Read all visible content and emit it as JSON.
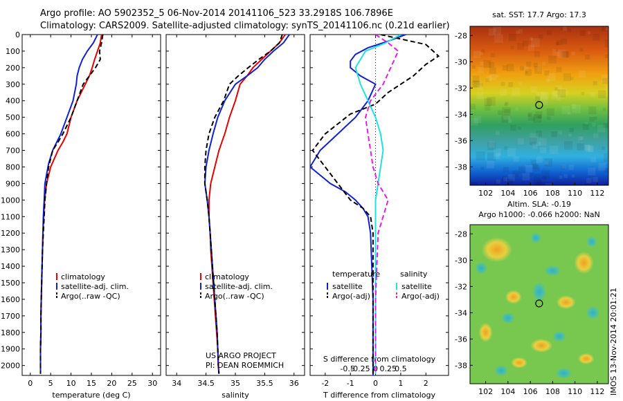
{
  "header": {
    "title_line1": "Argo profile: AO 5902352_5 06-Nov-2014 20141106_523 33.2918S 106.7896E",
    "title_line2": "Climatology: CARS2009. Satellite-adjusted climatology: synTS_20141106.nc (0.21d earlier)"
  },
  "colors": {
    "climatology": "#e00000",
    "satellite": "#1020d0",
    "argo": "#000000",
    "sal_satellite": "#20e0e0",
    "sal_argo": "#e020e0"
  },
  "chart_data": [
    {
      "type": "line",
      "xlabel": "temperature (deg C)",
      "xticks": [
        0,
        5,
        10,
        15,
        20,
        25,
        30
      ],
      "xlim": [
        -2,
        32
      ],
      "yticks": [
        0,
        100,
        200,
        300,
        400,
        500,
        600,
        700,
        800,
        900,
        1000,
        1100,
        1200,
        1300,
        1400,
        1500,
        1600,
        1700,
        1800,
        1900,
        2000
      ],
      "ylim": [
        2060,
        0
      ],
      "legend": [
        "climatology",
        "satellite-adj. clim.",
        "Argo(..raw -QC)"
      ],
      "series": [
        {
          "name": "climatology",
          "style": "solid",
          "color": "#e00000",
          "x": [
            17.5,
            17.2,
            16.5,
            15.8,
            15.2,
            14.5,
            13.5,
            11.5,
            10.0,
            9.0,
            8.0,
            6.8,
            5.0,
            4.0,
            3.5,
            3.3,
            3.1,
            3.0,
            2.9,
            2.8,
            2.7,
            2.6,
            2.6,
            2.5,
            2.5,
            2.5
          ],
          "y": [
            0,
            50,
            100,
            150,
            200,
            250,
            300,
            400,
            500,
            600,
            650,
            700,
            800,
            900,
            1000,
            1100,
            1200,
            1300,
            1400,
            1500,
            1600,
            1700,
            1800,
            1900,
            2000,
            2050
          ]
        },
        {
          "name": "satellite-adj. clim.",
          "style": "solid",
          "color": "#1020d0",
          "x": [
            16.5,
            15.5,
            14.0,
            12.8,
            12.0,
            11.5,
            11.3,
            10.5,
            9.0,
            7.5,
            6.5,
            5.5,
            4.5,
            3.6,
            3.4,
            3.2,
            3.1,
            3.0,
            2.9,
            2.8,
            2.7,
            2.6,
            2.6,
            2.5,
            2.5,
            2.5
          ],
          "y": [
            0,
            50,
            100,
            150,
            200,
            250,
            300,
            400,
            500,
            600,
            650,
            700,
            780,
            900,
            1000,
            1100,
            1200,
            1300,
            1400,
            1500,
            1600,
            1700,
            1800,
            1900,
            2000,
            2050
          ]
        },
        {
          "name": "Argo(..raw -QC)",
          "style": "dashed",
          "color": "#000000",
          "x": [
            17.8,
            17.5,
            17.0,
            17.2,
            16.0,
            14.5,
            13.0,
            11.5,
            10.0,
            8.0,
            6.8,
            5.5,
            4.5,
            4.0,
            3.6,
            3.4,
            3.2,
            3.0,
            2.9,
            2.8,
            2.7,
            2.6,
            2.6,
            2.5,
            2.5,
            2.5
          ],
          "y": [
            0,
            50,
            100,
            150,
            200,
            250,
            300,
            400,
            500,
            600,
            650,
            700,
            800,
            900,
            1000,
            1100,
            1200,
            1300,
            1400,
            1500,
            1600,
            1700,
            1800,
            1900,
            2000,
            2050
          ]
        }
      ]
    },
    {
      "type": "line",
      "xlabel": "salinity",
      "xticks": [
        34,
        34.5,
        35,
        35.5,
        36
      ],
      "xlim": [
        33.82,
        36.18
      ],
      "ylim": [
        2060,
        0
      ],
      "legend": [
        "climatology",
        "satellite-adj. clim.",
        "Argo(..raw -QC)"
      ],
      "annotation": [
        "US ARGO PROJECT",
        "PI: DEAN ROEMMICH"
      ],
      "series": [
        {
          "name": "climatology",
          "style": "solid",
          "color": "#e00000",
          "x": [
            35.85,
            35.75,
            35.6,
            35.45,
            35.3,
            35.2,
            35.08,
            35.0,
            34.9,
            34.82,
            34.72,
            34.65,
            34.58,
            34.55,
            34.55,
            34.57,
            34.58,
            34.6,
            34.62,
            34.64,
            34.66,
            34.68,
            34.7,
            34.71,
            34.72
          ],
          "y": [
            0,
            50,
            100,
            150,
            200,
            250,
            300,
            400,
            500,
            600,
            700,
            800,
            900,
            1000,
            1100,
            1200,
            1300,
            1400,
            1500,
            1600,
            1700,
            1800,
            1900,
            2000,
            2050
          ]
        },
        {
          "name": "satellite-adj. clim.",
          "style": "solid",
          "color": "#1020d0",
          "x": [
            35.92,
            35.82,
            35.65,
            35.5,
            35.38,
            35.2,
            35.0,
            34.82,
            34.7,
            34.62,
            34.55,
            34.5,
            34.48,
            34.52,
            34.55,
            34.57,
            34.59,
            34.61,
            34.63,
            34.65,
            34.67,
            34.69,
            34.7,
            34.71,
            34.72
          ],
          "y": [
            0,
            50,
            100,
            150,
            200,
            250,
            300,
            400,
            500,
            600,
            700,
            800,
            900,
            1000,
            1100,
            1200,
            1300,
            1400,
            1500,
            1600,
            1700,
            1800,
            1900,
            2000,
            2050
          ]
        },
        {
          "name": "Argo(..raw -QC)",
          "style": "dashed",
          "color": "#000000",
          "x": [
            35.8,
            35.75,
            35.6,
            35.4,
            35.22,
            35.05,
            34.9,
            34.8,
            34.65,
            34.55,
            34.5,
            34.48,
            34.48,
            34.52,
            34.55,
            34.57,
            34.59,
            34.61,
            34.63,
            34.65,
            34.67,
            34.69,
            34.7,
            34.71,
            34.72
          ],
          "y": [
            0,
            50,
            100,
            150,
            200,
            250,
            300,
            400,
            500,
            600,
            700,
            800,
            900,
            1000,
            1100,
            1200,
            1300,
            1400,
            1500,
            1600,
            1700,
            1800,
            1900,
            2000,
            2050
          ]
        }
      ]
    },
    {
      "type": "line",
      "xlabel": "T difference from climatology",
      "xticks": [
        -2,
        -1,
        0,
        1,
        2
      ],
      "top_xlabel": "S difference from climatology",
      "top_xticks": [
        "-0.5",
        "-0.25",
        "0",
        "0.25",
        "0.5"
      ],
      "xlim": [
        -2.6,
        2.9
      ],
      "ylim": [
        2060,
        0
      ],
      "legend": {
        "temperature": [
          "satellite",
          "Argo(-adj)"
        ],
        "salinity": [
          "satellite",
          "Argo(-adj)"
        ]
      },
      "series": [
        {
          "name": "satellite",
          "quantity": "temperature",
          "style": "solid",
          "color": "#1020d0",
          "x": [
            1.2,
            0.5,
            -0.3,
            -0.8,
            -1.0,
            -1.0,
            -0.6,
            0.0,
            -0.3,
            -0.8,
            -1.5,
            -2.2,
            -2.6,
            -2.2,
            -1.8,
            -1.2,
            -0.8,
            -0.5,
            -0.3,
            -0.2,
            -0.15,
            -0.1,
            -0.1,
            -0.1,
            -0.1,
            -0.1,
            -0.1
          ],
          "y": [
            0,
            40,
            80,
            120,
            160,
            200,
            250,
            300,
            400,
            500,
            600,
            700,
            800,
            850,
            900,
            950,
            1000,
            1050,
            1100,
            1200,
            1400,
            1600,
            1800,
            1900,
            2000,
            2040,
            2060
          ]
        },
        {
          "name": "Argo(-adj)",
          "quantity": "temperature",
          "style": "dashed",
          "color": "#000000",
          "x": [
            0.2,
            2.0,
            2.5,
            2.0,
            1.5,
            1.0,
            0.5,
            0.0,
            -1.0,
            -2.0,
            -2.5,
            -2.0,
            -1.5,
            -1.0,
            -0.5,
            -0.2,
            -0.1,
            -0.1,
            -0.1,
            -0.1
          ],
          "y": [
            0,
            60,
            130,
            180,
            250,
            300,
            350,
            420,
            480,
            600,
            700,
            800,
            900,
            1000,
            1050,
            1100,
            1200,
            1500,
            1800,
            2050
          ]
        },
        {
          "name": "satellite",
          "quantity": "salinity",
          "style": "solid",
          "color": "#20e0e0",
          "x": [
            1.0,
            0.4,
            -0.4,
            -0.8,
            -0.6,
            -0.3,
            0.0,
            0.2,
            0.3,
            0.2,
            0.1,
            0.0,
            0.0,
            0.0,
            0.0
          ],
          "y": [
            0,
            50,
            100,
            200,
            300,
            400,
            500,
            600,
            700,
            800,
            900,
            1000,
            1200,
            1600,
            2050
          ]
        },
        {
          "name": "Argo(-adj)",
          "quantity": "salinity",
          "style": "dashed",
          "color": "#e020e0",
          "x": [
            0.0,
            0.5,
            0.9,
            0.6,
            0.3,
            -0.2,
            -0.4,
            -0.3,
            -0.2,
            -0.1,
            0.1,
            0.5,
            0.3,
            0.1,
            0.0,
            0.0
          ],
          "y": [
            0,
            50,
            100,
            200,
            300,
            400,
            500,
            600,
            700,
            800,
            900,
            1000,
            1100,
            1200,
            1600,
            2050
          ]
        }
      ]
    },
    {
      "type": "heatmap",
      "title": "sat. SST: 17.7 Argo: 17.3",
      "xticks": [
        102,
        104,
        106,
        108,
        110,
        112
      ],
      "yticks": [
        -28,
        -30,
        -32,
        -34,
        -36,
        -38
      ],
      "xlim": [
        100.6,
        113.0
      ],
      "ylim": [
        -27.3,
        -39.4
      ],
      "argo_marker": {
        "lon": 106.79,
        "lat": -33.29
      }
    },
    {
      "type": "heatmap",
      "title": "Altim. SLA: -0.19",
      "subtitle": "Argo h1000: -0.066 h2000: NaN",
      "xticks": [
        102,
        104,
        106,
        108,
        110,
        112
      ],
      "yticks": [
        -28,
        -30,
        -32,
        -34,
        -36,
        -38
      ],
      "xlim": [
        100.6,
        113.0
      ],
      "ylim": [
        -27.3,
        -39.4
      ],
      "argo_marker": {
        "lon": 106.79,
        "lat": -33.29
      }
    }
  ],
  "footer": {
    "stamp": "IMOS 13-Nov-2014 20:01:21"
  }
}
